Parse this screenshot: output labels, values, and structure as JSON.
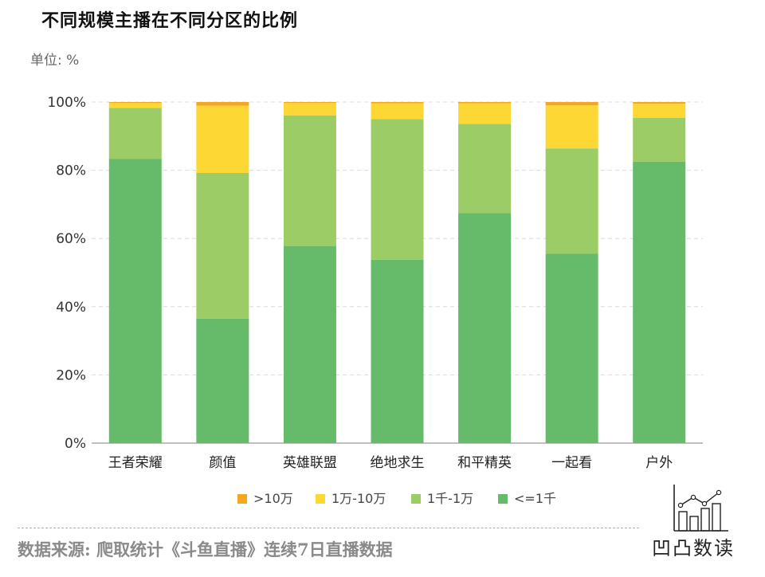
{
  "header": {
    "title": "不同规模主播在不同分区的比例",
    "unit": "单位: %"
  },
  "footer": {
    "source": "数据来源: 爬取统计《斗鱼直播》连续7日直播数据",
    "logo_text": "凹凸数读"
  },
  "colors": {
    "gt10w": "#F5A623",
    "w1_10": "#FDD835",
    "k1_w1": "#9CCC65",
    "le1k": "#66BB6A"
  },
  "chart_data": {
    "type": "bar",
    "stacked": true,
    "categories": [
      "王者荣耀",
      "颜值",
      "英雄联盟",
      "绝地求生",
      "和平精英",
      "一起看",
      "户外"
    ],
    "series": [
      {
        "name": "<=1千",
        "color": "#66BB6A",
        "values": [
          83.3,
          36.5,
          57.8,
          53.8,
          67.4,
          55.5,
          82.5
        ]
      },
      {
        "name": "1千-1万",
        "color": "#9CCC65",
        "values": [
          15.0,
          42.7,
          38.3,
          41.2,
          26.2,
          30.9,
          12.9
        ]
      },
      {
        "name": "1万-10万",
        "color": "#FDD835",
        "values": [
          1.4,
          19.7,
          3.6,
          4.6,
          6.0,
          12.6,
          4.1
        ]
      },
      {
        "name": ">10万",
        "color": "#F5A623",
        "values": [
          0.3,
          1.1,
          0.3,
          0.4,
          0.4,
          1.0,
          0.5
        ]
      }
    ],
    "y_ticks": [
      "0%",
      "20%",
      "40%",
      "60%",
      "80%",
      "100%"
    ],
    "ylim": [
      0,
      100
    ],
    "legend_order": [
      ">10万",
      "1万-10万",
      "1千-1万",
      "<=1千"
    ],
    "legend_position": "bottom-center",
    "grid": true
  }
}
